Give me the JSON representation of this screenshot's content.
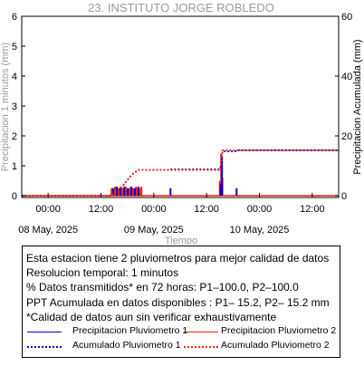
{
  "chart_data": {
    "type": "line",
    "title": "23. INSTITUTO JORGE ROBLEDO",
    "xlabel": "Tiempo",
    "ylabel_left": "Precipitacion 1 minutos (mm)",
    "ylabel_right": "Precipitacion Acumulada (mm)",
    "x_range_hours": [
      0,
      72
    ],
    "ylim_left": [
      0,
      6
    ],
    "ylim_right": [
      0,
      60
    ],
    "left_ticks": [
      0,
      1,
      2,
      3,
      4,
      5,
      6
    ],
    "right_ticks": [
      0,
      20,
      40,
      60
    ],
    "x_ticks": [
      {
        "hour": 6,
        "label": "00:00"
      },
      {
        "hour": 18,
        "label": "12:00"
      },
      {
        "hour": 30,
        "label": "00:00"
      },
      {
        "hour": 42,
        "label": "12:00"
      },
      {
        "hour": 54,
        "label": "00:00"
      },
      {
        "hour": 66,
        "label": "12:00"
      }
    ],
    "date_labels": [
      {
        "hour": 6,
        "label": "08 May, 2025"
      },
      {
        "hour": 30,
        "label": "09 May, 2025"
      },
      {
        "hour": 54,
        "label": "10 May, 2025"
      }
    ],
    "grid": false,
    "series": [
      {
        "name": "Precipitacion Pluviometro 1",
        "kind": "bars",
        "axis": "left",
        "color": "#0000dd",
        "points": [
          [
            20.8,
            0.25
          ],
          [
            21.6,
            0.3
          ],
          [
            22.4,
            0.25
          ],
          [
            23.3,
            0.3
          ],
          [
            24.1,
            0.25
          ],
          [
            24.9,
            0.3
          ],
          [
            25.7,
            0.25
          ],
          [
            26.5,
            0.3
          ],
          [
            33.8,
            0.25
          ],
          [
            45.2,
            0.4
          ],
          [
            45.5,
            1.3
          ],
          [
            48.8,
            0.25
          ]
        ]
      },
      {
        "name": "Precipitacion Pluviometro 2",
        "kind": "bars",
        "axis": "left",
        "color": "#ff2200",
        "points": [
          [
            20.4,
            0.25
          ],
          [
            20.8,
            0.25
          ],
          [
            21.2,
            0.3
          ],
          [
            21.6,
            0.25
          ],
          [
            22.0,
            0.25
          ],
          [
            22.4,
            0.3
          ],
          [
            22.8,
            0.25
          ],
          [
            23.2,
            0.25
          ],
          [
            23.6,
            0.3
          ],
          [
            24.0,
            0.25
          ],
          [
            24.4,
            0.25
          ],
          [
            24.8,
            0.3
          ],
          [
            25.2,
            0.25
          ],
          [
            25.6,
            0.25
          ],
          [
            26.0,
            0.3
          ],
          [
            26.4,
            0.25
          ],
          [
            26.8,
            0.25
          ],
          [
            27.2,
            0.3
          ],
          [
            45.0,
            0.5
          ],
          [
            45.3,
            1.4
          ],
          [
            45.6,
            0.6
          ]
        ]
      },
      {
        "name": "Acumulado Pluviometro 1",
        "kind": "line",
        "axis": "right",
        "color": "#0000dd",
        "points": [
          [
            0,
            0
          ],
          [
            20.3,
            0
          ],
          [
            22.5,
            2.5
          ],
          [
            25.0,
            7.0
          ],
          [
            26.5,
            8.6
          ],
          [
            33.5,
            8.6
          ],
          [
            34.0,
            8.8
          ],
          [
            45.0,
            8.8
          ],
          [
            45.3,
            10.5
          ],
          [
            45.6,
            14.8
          ],
          [
            48.5,
            14.8
          ],
          [
            49.0,
            15.2
          ],
          [
            72,
            15.2
          ]
        ]
      },
      {
        "name": "Acumulado Pluviometro 2",
        "kind": "line",
        "axis": "right",
        "color": "#ff2200",
        "points": [
          [
            0,
            0
          ],
          [
            20.3,
            0
          ],
          [
            22.5,
            2.5
          ],
          [
            25.0,
            7.0
          ],
          [
            26.5,
            8.6
          ],
          [
            45.0,
            8.6
          ],
          [
            45.3,
            10.5
          ],
          [
            45.6,
            15.2
          ],
          [
            72,
            15.2
          ]
        ]
      }
    ]
  },
  "info": {
    "lines": [
      "Esta estacion tiene 2 pluviometros para mejor calidad de datos",
      "Resolucion temporal: 1 minutos",
      "% Datos transmitidos* en 72 horas: P1–100.0, P2–100.0",
      "PPT Acumulada en datos disponibles : P1– 15.2, P2– 15.2 mm",
      "*Calidad de datos aun sin verificar exhaustivamente"
    ],
    "legend": [
      {
        "label": "Precipitacion Pluviometro 1",
        "color": "#0000dd",
        "style": "solid"
      },
      {
        "label": "Precipitacion Pluviometro 2",
        "color": "#ff2200",
        "style": "solid"
      },
      {
        "label": "Acumulado Pluviometro 1",
        "color": "#0000dd",
        "style": "dotted"
      },
      {
        "label": "Acumulado Pluviometro 2",
        "color": "#ff2200",
        "style": "dotted"
      }
    ]
  }
}
